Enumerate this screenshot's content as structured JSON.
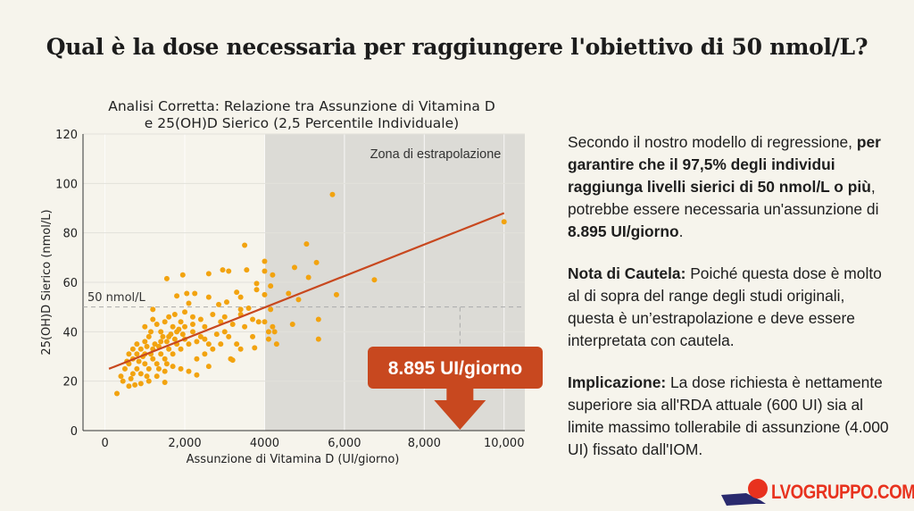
{
  "slide": {
    "title": "Qual è la dose necessaria per raggiungere l'obiettivo di 50 nmol/L?",
    "panel": {
      "p1_a": "Secondo il nostro modello di regressione, ",
      "p1_b": "per garantire che il 97,5% degli individui raggiunga livelli sierici di 50 nmol/L o più",
      "p1_c": ", potrebbe essere necessaria un'assunzione di ",
      "p1_d": "8.895 UI/giorno",
      "p1_e": ".",
      "p2_label": "Nota di Cautela:",
      "p2_text": " Poiché questa dose è molto al di sopra del range degli studi originali, questa è un’estrapolazione e deve essere interpretata con cautela.",
      "p3_label": "Implicazione:",
      "p3_text": " La dose richiesta è nettamente superiore sia all'RDA attuale (600 UI) sia al limite massimo tollerabile di assunzione (4.000 UI) fissato dall'IOM."
    },
    "logo": {
      "text": "LVOGRUPPO.COM",
      "color": "#e8321e"
    }
  },
  "chart_data": {
    "type": "scatter",
    "title_line1": "Analisi Corretta: Relazione tra Assunzione di Vitamina D",
    "title_line2": "e 25(OH)D Sierico (2,5 Percentile Individuale)",
    "xlabel": "Assunzione di Vitamina D (UI/giorno)",
    "ylabel": "25(OH)D Sierico (nmol/L)",
    "xlim": [
      -550,
      10520
    ],
    "ylim": [
      0,
      120
    ],
    "xticks": [
      0,
      2000,
      4000,
      6000,
      8000,
      10000
    ],
    "xtick_labels": [
      "0",
      "2,000",
      "4000",
      "6,000",
      "8,000",
      "10,000"
    ],
    "yticks": [
      0,
      20,
      40,
      60,
      80,
      100,
      120
    ],
    "ytick_labels": [
      "0",
      "20",
      "40",
      "60",
      "80",
      "100",
      "120"
    ],
    "grid": true,
    "point_color": "#f2a30f",
    "line_color": "#c8481f",
    "shade_color": "#dcdbd6",
    "extrapolation_zone": {
      "from": 4000,
      "label": "Zona di estrapolazione"
    },
    "threshold": {
      "y": 50,
      "label": "50 nmol/L"
    },
    "regression_line": [
      [
        100,
        25
      ],
      [
        10000,
        88
      ]
    ],
    "callout": {
      "x": 8895,
      "label": "8.895 UI/giorno",
      "color": "#c8481f"
    },
    "points": [
      [
        5700,
        95.5
      ],
      [
        10000,
        84.5
      ],
      [
        3500,
        75
      ],
      [
        5050,
        75.5
      ],
      [
        4000,
        68.5
      ],
      [
        5300,
        68
      ],
      [
        4750,
        66
      ],
      [
        6750,
        61
      ],
      [
        5100,
        62
      ],
      [
        4200,
        63
      ],
      [
        3550,
        65
      ],
      [
        2950,
        65
      ],
      [
        3100,
        64.5
      ],
      [
        2600,
        63.5
      ],
      [
        1550,
        61.5
      ],
      [
        1950,
        63
      ],
      [
        4000,
        64.5
      ],
      [
        3800,
        59.5
      ],
      [
        4150,
        58.5
      ],
      [
        5800,
        55
      ],
      [
        4600,
        55.5
      ],
      [
        4850,
        53
      ],
      [
        5350,
        45
      ],
      [
        5350,
        37
      ],
      [
        4700,
        43
      ],
      [
        4300,
        35
      ],
      [
        4100,
        37
      ],
      [
        4100,
        40
      ],
      [
        4200,
        42
      ],
      [
        4250,
        40
      ],
      [
        4150,
        49
      ],
      [
        4000,
        44
      ],
      [
        3700,
        38
      ],
      [
        3750,
        33.5
      ],
      [
        3850,
        44
      ],
      [
        3400,
        33
      ],
      [
        3300,
        35
      ],
      [
        3150,
        29
      ],
      [
        3200,
        28.5
      ],
      [
        2600,
        26
      ],
      [
        2300,
        22.5
      ],
      [
        1500,
        19.5
      ],
      [
        300,
        15
      ],
      [
        2050,
        55.5
      ],
      [
        2250,
        55.5
      ],
      [
        2600,
        54
      ],
      [
        3300,
        56
      ],
      [
        3400,
        54
      ],
      [
        3050,
        52
      ],
      [
        2850,
        51
      ],
      [
        2100,
        51.5
      ],
      [
        1800,
        54.5
      ],
      [
        1200,
        49
      ],
      [
        3600,
        49.5
      ],
      [
        3400,
        47
      ],
      [
        3800,
        57
      ],
      [
        4000,
        55
      ],
      [
        3700,
        45
      ],
      [
        3500,
        42
      ],
      [
        3000,
        40
      ],
      [
        2900,
        44
      ],
      [
        2700,
        47
      ],
      [
        2500,
        42
      ],
      [
        2400,
        38
      ],
      [
        2200,
        46
      ],
      [
        2000,
        48
      ],
      [
        1900,
        44
      ],
      [
        1700,
        42
      ],
      [
        1600,
        46
      ],
      [
        1400,
        40
      ],
      [
        1300,
        43
      ],
      [
        1100,
        38
      ],
      [
        1000,
        36
      ],
      [
        900,
        33
      ],
      [
        800,
        31
      ],
      [
        700,
        29
      ],
      [
        600,
        27
      ],
      [
        500,
        25
      ],
      [
        400,
        22
      ],
      [
        450,
        20
      ],
      [
        600,
        18
      ],
      [
        750,
        18.5
      ],
      [
        900,
        19
      ],
      [
        1100,
        20
      ],
      [
        1300,
        22
      ],
      [
        1500,
        24
      ],
      [
        1700,
        26
      ],
      [
        1900,
        25
      ],
      [
        2100,
        24
      ],
      [
        2300,
        29
      ],
      [
        2500,
        31
      ],
      [
        2700,
        33
      ],
      [
        2900,
        35
      ],
      [
        3100,
        38
      ],
      [
        2200,
        40
      ],
      [
        2000,
        37
      ],
      [
        1800,
        35
      ],
      [
        1600,
        33
      ],
      [
        1400,
        31
      ],
      [
        1200,
        29
      ],
      [
        1000,
        27
      ],
      [
        800,
        25
      ],
      [
        700,
        23
      ],
      [
        900,
        23
      ],
      [
        1100,
        25
      ],
      [
        1300,
        27
      ],
      [
        1500,
        29
      ],
      [
        1700,
        31
      ],
      [
        1900,
        33
      ],
      [
        2100,
        35
      ],
      [
        2300,
        36
      ],
      [
        2500,
        37
      ],
      [
        1200,
        33
      ],
      [
        1000,
        31
      ],
      [
        800,
        35
      ],
      [
        600,
        31
      ],
      [
        1400,
        36
      ],
      [
        1600,
        38
      ],
      [
        1800,
        40
      ],
      [
        2000,
        42
      ],
      [
        2200,
        43
      ],
      [
        2400,
        45
      ],
      [
        1000,
        42
      ],
      [
        1200,
        45
      ],
      [
        1500,
        44
      ],
      [
        1750,
        47
      ],
      [
        850,
        28
      ],
      [
        950,
        30
      ],
      [
        1050,
        34
      ],
      [
        1150,
        31
      ],
      [
        1250,
        35
      ],
      [
        1350,
        34
      ],
      [
        1450,
        38
      ],
      [
        1550,
        36
      ],
      [
        1650,
        39
      ],
      [
        1750,
        37
      ],
      [
        1850,
        41
      ],
      [
        1950,
        39
      ],
      [
        700,
        33
      ],
      [
        550,
        28
      ],
      [
        1150,
        40
      ],
      [
        1350,
        25
      ],
      [
        1550,
        27
      ],
      [
        650,
        21
      ],
      [
        1050,
        22
      ],
      [
        2600,
        35
      ],
      [
        2800,
        39
      ],
      [
        3000,
        46
      ],
      [
        3200,
        43
      ],
      [
        3400,
        49
      ]
    ]
  }
}
